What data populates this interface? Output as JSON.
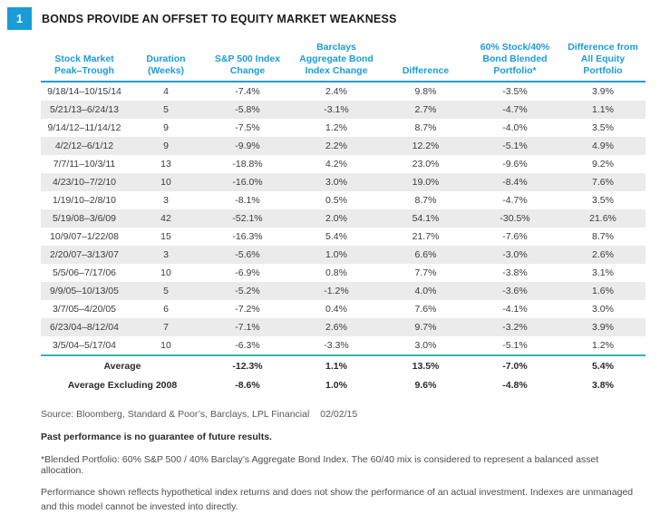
{
  "figure": {
    "number": "1",
    "title": "BONDS PROVIDE AN OFFSET TO EQUITY MARKET WEAKNESS"
  },
  "colors": {
    "accent_blue": "#1b9cd8",
    "accent_teal": "#35b3b3",
    "stripe_gray": "#ebebeb"
  },
  "table": {
    "columns": [
      "Stock Market Peak–Trough",
      "Duration (Weeks)",
      "S&P 500 Index Change",
      "Barclays Aggregate Bond Index Change",
      "Difference",
      "60% Stock/40% Bond Blended Portfolio*",
      "Difference from All Equity Portfolio"
    ],
    "rows": [
      [
        "9/18/14–10/15/14",
        "4",
        "-7.4%",
        "2.4%",
        "9.8%",
        "-3.5%",
        "3.9%"
      ],
      [
        "5/21/13–6/24/13",
        "5",
        "-5.8%",
        "-3.1%",
        "2.7%",
        "-4.7%",
        "1.1%"
      ],
      [
        "9/14/12–11/14/12",
        "9",
        "-7.5%",
        "1.2%",
        "8.7%",
        "-4.0%",
        "3.5%"
      ],
      [
        "4/2/12–6/1/12",
        "9",
        "-9.9%",
        "2.2%",
        "12.2%",
        "-5.1%",
        "4.9%"
      ],
      [
        "7/7/11–10/3/11",
        "13",
        "-18.8%",
        "4.2%",
        "23.0%",
        "-9.6%",
        "9.2%"
      ],
      [
        "4/23/10–7/2/10",
        "10",
        "-16.0%",
        "3.0%",
        "19.0%",
        "-8.4%",
        "7.6%"
      ],
      [
        "1/19/10–2/8/10",
        "3",
        "-8.1%",
        "0.5%",
        "8.7%",
        "-4.7%",
        "3.5%"
      ],
      [
        "5/19/08–3/6/09",
        "42",
        "-52.1%",
        "2.0%",
        "54.1%",
        "-30.5%",
        "21.6%"
      ],
      [
        "10/9/07–1/22/08",
        "15",
        "-16.3%",
        "5.4%",
        "21.7%",
        "-7.6%",
        "8.7%"
      ],
      [
        "2/20/07–3/13/07",
        "3",
        "-5.6%",
        "1.0%",
        "6.6%",
        "-3.0%",
        "2.6%"
      ],
      [
        "5/5/06–7/17/06",
        "10",
        "-6.9%",
        "0.8%",
        "7.7%",
        "-3.8%",
        "3.1%"
      ],
      [
        "9/9/05–10/13/05",
        "5",
        "-5.2%",
        "-1.2%",
        "4.0%",
        "-3.6%",
        "1.6%"
      ],
      [
        "3/7/05–4/20/05",
        "6",
        "-7.2%",
        "0.4%",
        "7.6%",
        "-4.1%",
        "3.0%"
      ],
      [
        "6/23/04–8/12/04",
        "7",
        "-7.1%",
        "2.6%",
        "9.7%",
        "-3.2%",
        "3.9%"
      ],
      [
        "3/5/04–5/17/04",
        "10",
        "-6.3%",
        "-3.3%",
        "3.0%",
        "-5.1%",
        "1.2%"
      ]
    ],
    "average_rows": [
      {
        "label": "Average",
        "values": [
          "-12.3%",
          "1.1%",
          "13.5%",
          "-7.0%",
          "5.4%"
        ]
      },
      {
        "label": "Average Excluding 2008",
        "values": [
          "-8.6%",
          "1.0%",
          "9.6%",
          "-4.8%",
          "3.8%"
        ]
      }
    ]
  },
  "footer": {
    "source": "Source: Bloomberg, Standard & Poor’s, Barclays, LPL Financial",
    "source_date": "02/02/15",
    "disclaimer_bold": "Past performance is no guarantee of future results.",
    "footnote": "*Blended Portfolio: 60% S&P 500 / 40% Barclay’s Aggregate Bond Index. The 60/40 mix is considered to represent a balanced asset allocation.",
    "disclosure": "Performance shown reflects hypothetical index returns and does not show the performance of an actual investment. Indexes are unmanaged and this model cannot be invested into directly."
  }
}
